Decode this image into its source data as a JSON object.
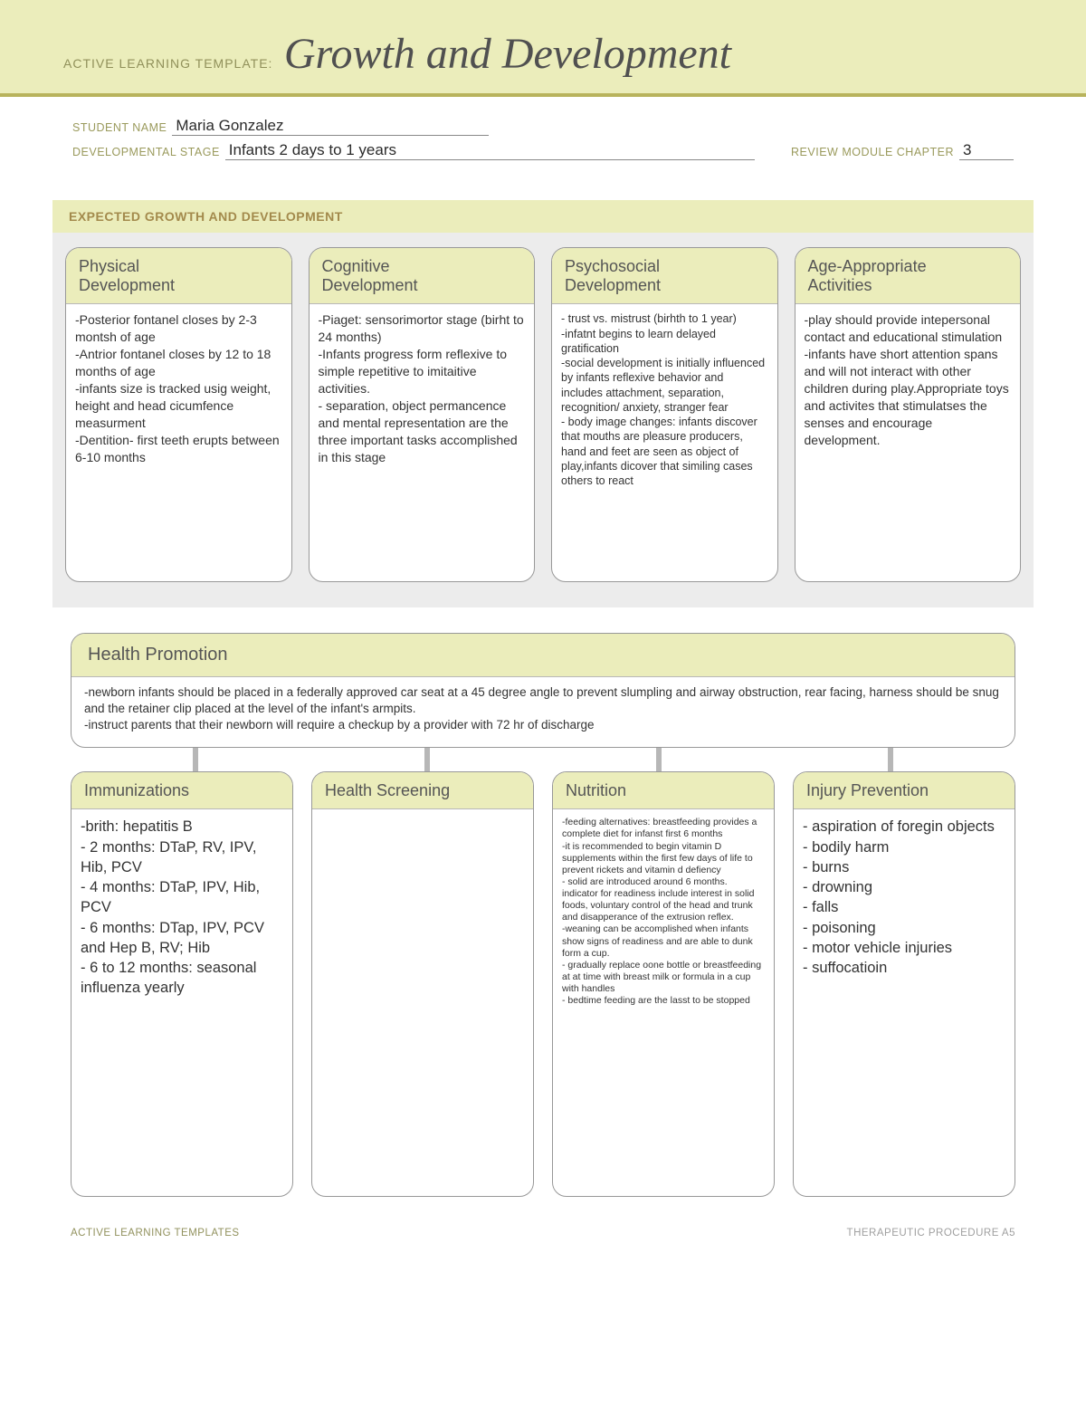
{
  "colors": {
    "banner_bg": "#ebedbb",
    "banner_border": "#b8b35c",
    "section_bg": "#ececec",
    "card_border": "#989898",
    "connector": "#b7b7b7",
    "label_olive": "#9a9a5c",
    "heading_brown": "#a38a4c"
  },
  "banner": {
    "prefix": "ACTIVE LEARNING TEMPLATE:",
    "title": "Growth and Development"
  },
  "meta": {
    "student_label": "STUDENT NAME",
    "student_value": "Maria Gonzalez",
    "stage_label": "DEVELOPMENTAL STAGE",
    "stage_value": "Infants 2 days to 1 years",
    "chapter_label": "REVIEW MODULE CHAPTER",
    "chapter_value": "3"
  },
  "section1": {
    "heading": "EXPECTED GROWTH AND DEVELOPMENT",
    "cards": [
      {
        "title": "Physical\nDevelopment",
        "body": "-Posterior fontanel closes by 2-3 montsh of age\n-Antrior fontanel closes by 12 to 18 months of age\n-infants size is tracked usig weight, height and head cicumfence measurment\n-Dentition- first teeth erupts between 6-10 months",
        "size": "md"
      },
      {
        "title": "Cognitive\nDevelopment",
        "body": "-Piaget: sensorimortor stage (birht to 24 months)\n-Infants progress form reflexive to simple repetitive to imitaitive activities.\n- separation, object permancence and mental representation are the three important tasks accomplished in this stage",
        "size": "md"
      },
      {
        "title": "Psychosocial\nDevelopment",
        "body": "- trust vs. mistrust (birhth to 1 year)\n-infatnt begins to learn delayed gratification\n-social development is initially influenced by infants reflexive behavior and includes attachment, separation, recognition/ anxiety, stranger fear\n- body image changes: infants discover that mouths are pleasure producers, hand and feet are seen as object of play,infants dicover that similing cases others to react",
        "size": "sm"
      },
      {
        "title": "Age-Appropriate\nActivities",
        "body": "-play should provide intepersonal contact and educational stimulation\n-infants have short attention spans and will not interact with other children during play.Appropriate toys and activites that stimulatses the senses and encourage development.",
        "size": "md"
      }
    ]
  },
  "health": {
    "title": "Health Promotion",
    "body": "-newborn infants should be placed in a federally approved car seat at a 45 degree angle to prevent slumpling and airway obstruction, rear facing, harness should be snug and the retainer clip placed at the level of the infant's armpits.\n-instruct parents that their newborn will require a checkup by a provider with 72 hr of discharge",
    "subs": [
      {
        "title": "Immunizations",
        "body": "-brith: hepatitis B\n- 2 months: DTaP, RV, IPV, Hib, PCV\n- 4 months: DTaP, IPV, Hib, PCV\n- 6 months: DTap, IPV, PCV and Hep B, RV; Hib\n- 6 to 12 months: seasonal influenza yearly",
        "size": "lg"
      },
      {
        "title": "Health Screening",
        "body": "",
        "size": "md"
      },
      {
        "title": "Nutrition",
        "body": "-feeding alternatives: breastfeeding provides a complete diet for infanst first 6 months\n-it is recommended to begin vitamin D supplements within the first few days of life to prevent rickets and vitamin d defiency\n- solid are introduced around 6 months. indicator for readiness include interest in solid foods, voluntary control of the head and trunk and disapperance of the extrusion reflex.\n-weaning can be accomplished when infants show signs of readiness and are able to dunk form a cup.\n- gradually replace oone bottle or breastfeeding at at time with breast milk or formula in a cup with handles\n- bedtime feeding are the lasst to be stopped",
        "size": "xs"
      },
      {
        "title": "Injury Prevention",
        "body": "- aspiration of foregin objects\n- bodily harm\n- burns\n- drowning\n- falls\n- poisoning\n- motor vehicle injuries\n- suffocatioin",
        "size": "lg"
      }
    ]
  },
  "footer": {
    "left": "ACTIVE LEARNING TEMPLATES",
    "right": "THERAPEUTIC PROCEDURE   A5"
  }
}
